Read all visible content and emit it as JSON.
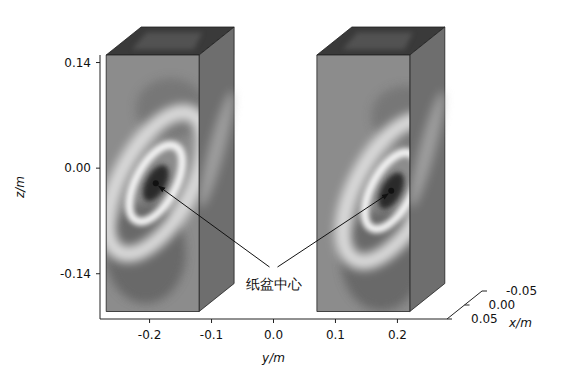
{
  "chart_data": {
    "type": "volume_slices",
    "zlabel": "z/m",
    "ylabel": "y/m",
    "xlabel": "x/m",
    "zlim": [
      -0.2,
      0.15
    ],
    "zticks": [
      0.14,
      {
        "value": 0,
        "label": "0.00"
      },
      -0.14
    ],
    "ylim": [
      -0.28,
      0.28
    ],
    "yticks": [
      -0.2,
      -0.1,
      {
        "value": 0,
        "label": "0.0"
      },
      0.1,
      0.2
    ],
    "xlim": [
      -0.05,
      0.05
    ],
    "xticks": [
      -0.05,
      {
        "value": 0,
        "label": "0.00"
      },
      0.05
    ],
    "annotation": "纸盆中心",
    "boxes": [
      {
        "y_range": [
          -0.27,
          -0.12
        ],
        "x_range": [
          -0.05,
          0.05
        ],
        "z_range": [
          -0.19,
          0.15
        ],
        "cone_center": [
          -0.19,
          -0.02
        ]
      },
      {
        "y_range": [
          0.07,
          0.22
        ],
        "x_range": [
          -0.05,
          0.05
        ],
        "z_range": [
          -0.19,
          0.15
        ],
        "cone_center": [
          0.19,
          -0.03
        ]
      }
    ]
  }
}
